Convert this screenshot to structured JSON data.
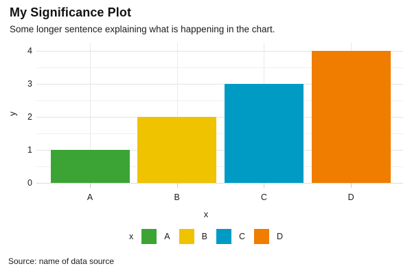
{
  "header": {
    "title": "My Significance Plot",
    "subtitle": "Some longer sentence explaining what is happening in the chart."
  },
  "footer": {
    "source": "Source: name of data source"
  },
  "chart_data": {
    "type": "bar",
    "title": "My Significance Plot",
    "subtitle": "Some longer sentence explaining what is happening in the chart.",
    "categories": [
      "A",
      "B",
      "C",
      "D"
    ],
    "values": [
      1,
      2,
      3,
      4
    ],
    "bar_colors": [
      "#3ca434",
      "#f0c300",
      "#009bc4",
      "#f07c00"
    ],
    "xlabel": "x",
    "ylabel": "y",
    "ylim": [
      0,
      4
    ],
    "yticks": [
      0,
      1,
      2,
      3,
      4
    ],
    "minor_yticks": [
      0.5,
      1.5,
      2.5,
      3.5
    ],
    "grid": "horizontal major+minor, vertical at category centers",
    "legend": {
      "title": "x",
      "position": "bottom",
      "entries": [
        {
          "label": "A",
          "color": "#3ca434"
        },
        {
          "label": "B",
          "color": "#f0c300"
        },
        {
          "label": "C",
          "color": "#009bc4"
        },
        {
          "label": "D",
          "color": "#f07c00"
        }
      ]
    },
    "source": "Source: name of data source"
  },
  "colors": {
    "background": "#ffffff",
    "grid_major": "#e3e3e3",
    "grid_minor": "#efefef",
    "grid_vertical": "#e9e9e9",
    "axis_line": "#dbdbdb",
    "tick_mark": "#c9c9c9",
    "text": "#1a1a1a"
  }
}
